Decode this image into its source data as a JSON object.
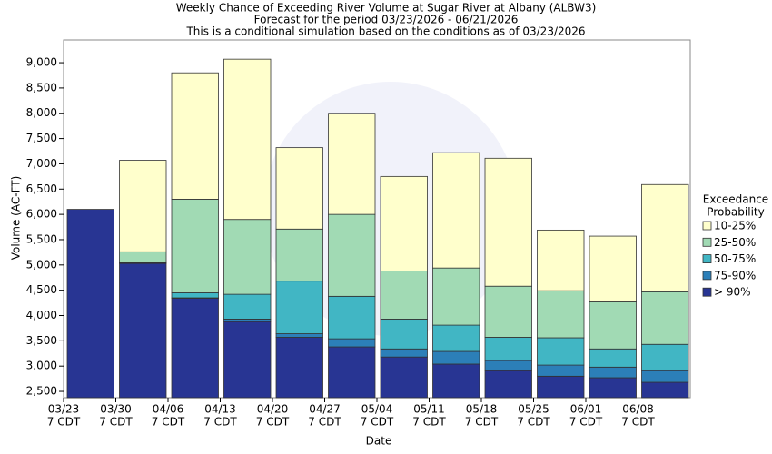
{
  "chart_data": {
    "type": "bar",
    "title": "Weekly Chance of Exceeding River Volume at Sugar River at Albany (ALBW3)",
    "subtitle": "Forecast for the period 03/23/2026 - 06/21/2026",
    "note": "This is a conditional simulation based on the conditions as of 03/23/2026",
    "x_label": "Date",
    "y_label": "Volume (AC-FT)",
    "legend_title": [
      "Exceedance",
      "Probability"
    ],
    "legend_position": "right",
    "categories": [
      [
        "03/23",
        "7 CDT"
      ],
      [
        "03/30",
        "7 CDT"
      ],
      [
        "04/06",
        "7 CDT"
      ],
      [
        "04/13",
        "7 CDT"
      ],
      [
        "04/20",
        "7 CDT"
      ],
      [
        "04/27",
        "7 CDT"
      ],
      [
        "05/04",
        "7 CDT"
      ],
      [
        "05/11",
        "7 CDT"
      ],
      [
        "05/18",
        "7 CDT"
      ],
      [
        "05/25",
        "7 CDT"
      ],
      [
        "06/01",
        "7 CDT"
      ],
      [
        "06/08",
        "7 CDT"
      ]
    ],
    "series": [
      {
        "name": "> 90%",
        "color": "#283593",
        "values": [
          6100,
          5030,
          4340,
          3880,
          3570,
          3380,
          3180,
          3040,
          2910,
          2800,
          2770,
          2680
        ]
      },
      {
        "name": "75-90%",
        "color": "#2c7fb8",
        "values": [
          6100,
          5040,
          4350,
          3930,
          3640,
          3540,
          3340,
          3290,
          3110,
          3020,
          2980,
          2910
        ]
      },
      {
        "name": "50-75%",
        "color": "#41b6c4",
        "values": [
          6100,
          5050,
          4450,
          4420,
          4680,
          4380,
          3930,
          3810,
          3570,
          3560,
          3340,
          3430
        ]
      },
      {
        "name": "25-50%",
        "color": "#a1dab4",
        "values": [
          6100,
          5260,
          6300,
          5900,
          5710,
          6000,
          4880,
          4940,
          4580,
          4490,
          4270,
          4470
        ]
      },
      {
        "name": "10-25%",
        "color": "#ffffcc",
        "values": [
          6100,
          7070,
          8800,
          9070,
          7320,
          8000,
          6750,
          7220,
          7110,
          5690,
          5570,
          6590
        ]
      }
    ],
    "ylim": [
      2375,
      9450
    ],
    "yticks": [
      {
        "value": 2500,
        "label": "2,500"
      },
      {
        "value": 3000,
        "label": "3,000"
      },
      {
        "value": 3500,
        "label": "3,500"
      },
      {
        "value": 4000,
        "label": "4,000"
      },
      {
        "value": 4500,
        "label": "4,500"
      },
      {
        "value": 5000,
        "label": "5,000"
      },
      {
        "value": 5500,
        "label": "5,500"
      },
      {
        "value": 6000,
        "label": "6,000"
      },
      {
        "value": 6500,
        "label": "6,500"
      },
      {
        "value": 7000,
        "label": "7,000"
      },
      {
        "value": 7500,
        "label": "7,500"
      },
      {
        "value": 8000,
        "label": "8,000"
      },
      {
        "value": 8500,
        "label": "8,500"
      },
      {
        "value": 9000,
        "label": "9,000"
      }
    ],
    "grid": false
  }
}
